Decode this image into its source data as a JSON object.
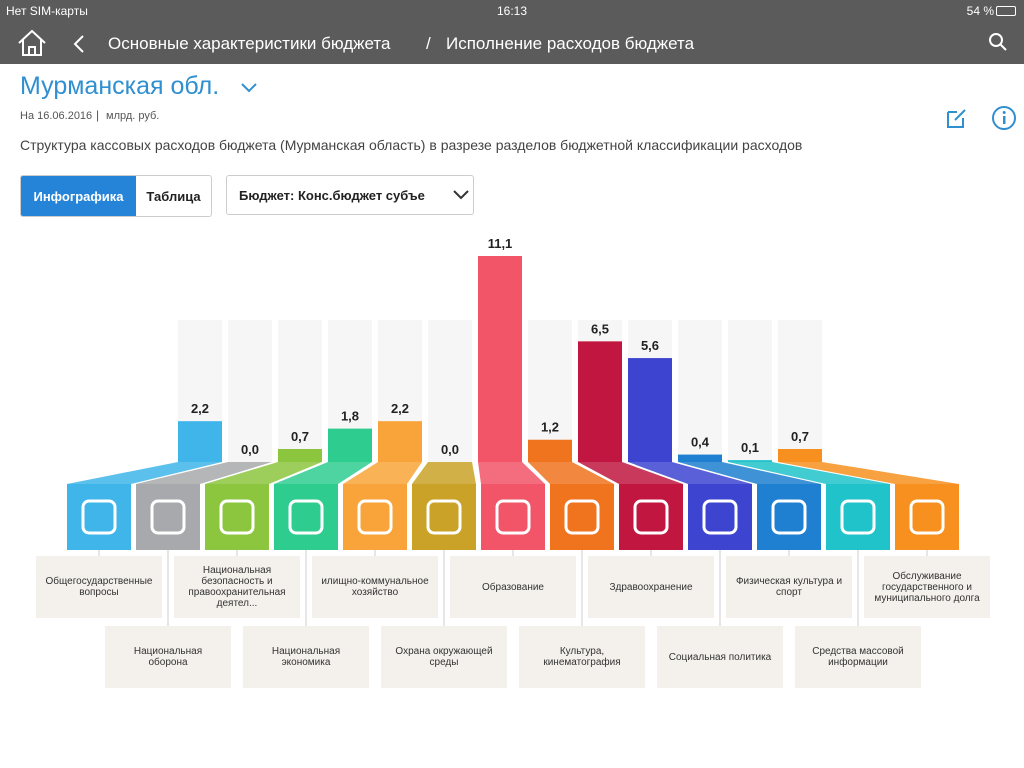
{
  "status_bar": {
    "carrier": "Нет SIM-карты",
    "time": "16:13",
    "battery": "54 %"
  },
  "nav": {
    "title_1": "Основные характеристики бюджета",
    "separator": "/",
    "title_2": "Исполнение расходов бюджета"
  },
  "header": {
    "region": "Мурманская обл.",
    "date": "На 16.06.2016",
    "units": "млрд. руб.",
    "description": "Структура кассовых расходов бюджета (Мурманская область) в разрезе разделов бюджетной классификации расходов"
  },
  "tabs": [
    "Инфографика",
    "Таблица"
  ],
  "dropdown": "Бюджет: Конс.бюджет субъе",
  "chart_data": {
    "type": "bar",
    "categories": [
      "Общегосударственные вопросы",
      "Национальная оборона",
      "Национальная безопасность и правоохранительная деятел...",
      "Национальная экономика",
      "илищно-коммунальное хозяйство",
      "Охрана окружающей среды",
      "Образование",
      "Культура, кинематография",
      "Здравоохранение",
      "Социальная политика",
      "Физическая культура и спорт",
      "Средства массовой информации",
      "Обслуживание государственного и муниципального долга"
    ],
    "values": [
      2.2,
      0.0,
      0.7,
      1.8,
      2.2,
      0.0,
      11.1,
      1.2,
      6.5,
      5.6,
      0.4,
      0.1,
      0.7
    ],
    "value_labels": [
      "2,2",
      "0,0",
      "0,7",
      "1,8",
      "2,2",
      "0,0",
      "11,1",
      "1,2",
      "6,5",
      "5,6",
      "0,4",
      "0,1",
      "0,7"
    ],
    "colors": [
      "#3fb5ea",
      "#a7a9ac",
      "#8cc63f",
      "#2ecc8f",
      "#f9a43a",
      "#c9a227",
      "#f25468",
      "#f0731e",
      "#c0163f",
      "#3d44d0",
      "#1f7fd0",
      "#20c3c9",
      "#f7901e"
    ]
  }
}
